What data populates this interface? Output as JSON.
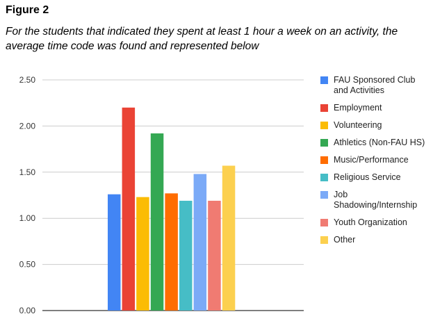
{
  "figure_label": "Figure 2",
  "caption": "For the students that indicated they spent at least 1 hour a week on an activity, the average time code was found and represented below",
  "chart_data": {
    "type": "bar",
    "title": "",
    "xlabel": "",
    "ylabel": "",
    "ylim": [
      0,
      2.5
    ],
    "yticks": [
      "0.00",
      "0.50",
      "1.00",
      "1.50",
      "2.00",
      "2.50"
    ],
    "grid": true,
    "legend_position": "right",
    "series": [
      {
        "name": "FAU Sponsored Club and Activities",
        "value": 1.26,
        "color": "#4285F4"
      },
      {
        "name": "Employment",
        "value": 2.2,
        "color": "#EA4335"
      },
      {
        "name": "Volunteering",
        "value": 1.23,
        "color": "#FBBC04"
      },
      {
        "name": "Athletics (Non-FAU HS)",
        "value": 1.92,
        "color": "#34A853"
      },
      {
        "name": "Music/Performance",
        "value": 1.27,
        "color": "#FF6D01"
      },
      {
        "name": "Religious Service",
        "value": 1.19,
        "color": "#46BDC6"
      },
      {
        "name": "Job Shadowing/Internship",
        "value": 1.48,
        "color": "#7BAAF7"
      },
      {
        "name": "Youth Organization",
        "value": 1.19,
        "color": "#F07B72"
      },
      {
        "name": "Other",
        "value": 1.57,
        "color": "#FCD04F"
      }
    ]
  }
}
